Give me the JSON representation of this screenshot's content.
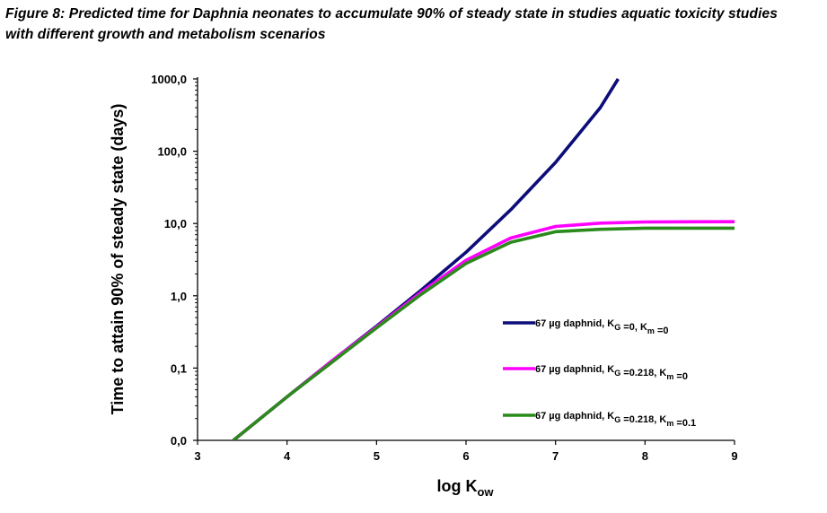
{
  "caption": {
    "line1": "Figure 8: Predicted time for Daphnia neonates to accumulate 90% of steady state in studies aquatic toxicity studies",
    "line2": "with different growth and metabolism scenarios"
  },
  "chart_data": {
    "type": "line",
    "xlabel": {
      "main": "log K",
      "sub": "ow"
    },
    "ylabel": "Time to attain 90% of steady state (days)",
    "xlim": [
      3,
      9
    ],
    "ylim": [
      0.01,
      1000
    ],
    "yscale": "log",
    "x_ticks": [
      "3",
      "4",
      "5",
      "6",
      "7",
      "8",
      "9"
    ],
    "y_ticks": [
      {
        "value": 0.01,
        "label": "0,0"
      },
      {
        "value": 0.1,
        "label": "0,1"
      },
      {
        "value": 1,
        "label": "1,0"
      },
      {
        "value": 10,
        "label": "10,0"
      },
      {
        "value": 100,
        "label": "100,0"
      },
      {
        "value": 1000,
        "label": "1000,0"
      }
    ],
    "grid": false,
    "legend_position": "right",
    "series": [
      {
        "legend": {
          "prefix": "67 µg daphnid, K",
          "sub1": "G",
          "mid": " =0, K",
          "sub2": "m",
          "suffix": " =0"
        },
        "color": "#0d0d7a",
        "points": [
          [
            3.4,
            0.01
          ],
          [
            4.0,
            0.04
          ],
          [
            4.5,
            0.125
          ],
          [
            5.0,
            0.38
          ],
          [
            5.5,
            1.2
          ],
          [
            6.0,
            4.0
          ],
          [
            6.5,
            15.5
          ],
          [
            7.0,
            70
          ],
          [
            7.5,
            400
          ],
          [
            7.7,
            1000
          ]
        ]
      },
      {
        "legend": {
          "prefix": "67 µg daphnid, K",
          "sub1": "G",
          "mid": " =0.218, K",
          "sub2": "m",
          "suffix": " =0"
        },
        "color": "#ff00ff",
        "points": [
          [
            3.4,
            0.01
          ],
          [
            4.0,
            0.04
          ],
          [
            4.5,
            0.125
          ],
          [
            5.0,
            0.37
          ],
          [
            5.5,
            1.12
          ],
          [
            6.0,
            3.1
          ],
          [
            6.5,
            6.3
          ],
          [
            7.0,
            9.1
          ],
          [
            7.5,
            10.1
          ],
          [
            8.0,
            10.5
          ],
          [
            9.0,
            10.6
          ]
        ]
      },
      {
        "legend": {
          "prefix": "67 µg daphnid, K",
          "sub1": "G",
          "mid": " =0.218, K",
          "sub2": "m",
          "suffix": " =0.1"
        },
        "color": "#2b8a1c",
        "points": [
          [
            3.4,
            0.01
          ],
          [
            4.0,
            0.04
          ],
          [
            4.5,
            0.12
          ],
          [
            5.0,
            0.36
          ],
          [
            5.5,
            1.05
          ],
          [
            6.0,
            2.8
          ],
          [
            6.5,
            5.5
          ],
          [
            7.0,
            7.7
          ],
          [
            7.5,
            8.3
          ],
          [
            8.0,
            8.6
          ],
          [
            9.0,
            8.6
          ]
        ]
      }
    ]
  }
}
